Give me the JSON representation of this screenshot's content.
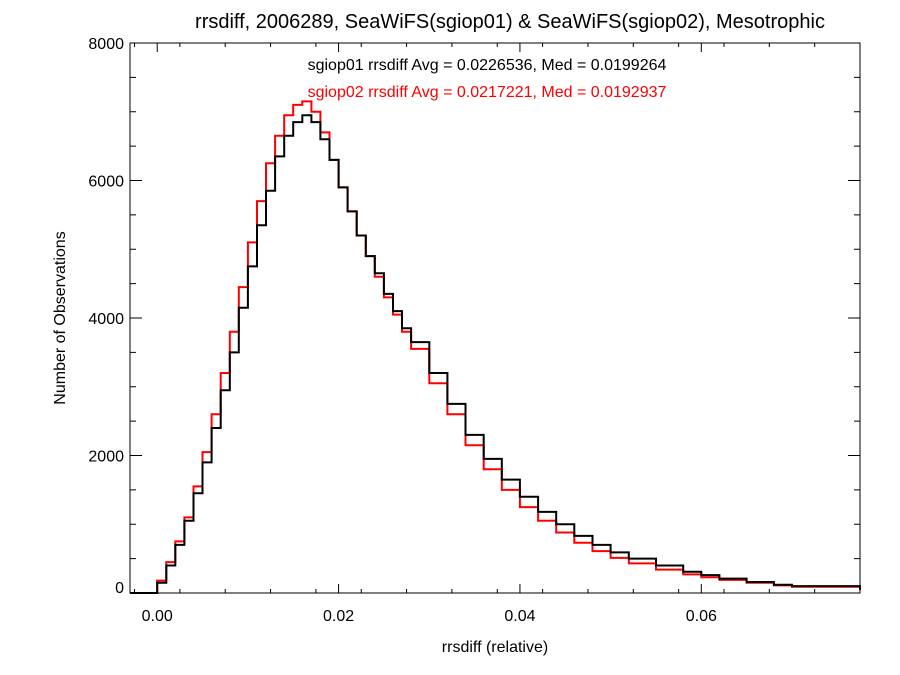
{
  "chart_data": {
    "type": "line",
    "title": "rrsdiff, 2006289, SeaWiFS(sgiop01) & SeaWiFS(sgiop02), Mesotrophic",
    "xlabel": "rrsdiff (relative)",
    "ylabel": "Number of Observations",
    "xlim": [
      -0.003,
      0.0775
    ],
    "ylim": [
      0,
      8000
    ],
    "x_ticks": [
      0.0,
      0.02,
      0.04,
      0.06
    ],
    "x_tick_labels": [
      "0.00",
      "0.02",
      "0.04",
      "0.06"
    ],
    "y_ticks": [
      0,
      2000,
      4000,
      6000,
      8000
    ],
    "y_tick_labels": [
      "0",
      "2000",
      "4000",
      "6000",
      "8000"
    ],
    "grid": false,
    "legend_position": "top-center",
    "series": [
      {
        "name": "sgiop01",
        "legend": "sgiop01 rrsdiff Avg = 0.0226536, Med = 0.0199264",
        "color": "#000000",
        "x": [
          -0.003,
          -0.0005,
          0.0,
          0.001,
          0.002,
          0.003,
          0.004,
          0.005,
          0.006,
          0.007,
          0.008,
          0.009,
          0.01,
          0.011,
          0.012,
          0.013,
          0.014,
          0.015,
          0.016,
          0.017,
          0.018,
          0.019,
          0.02,
          0.021,
          0.022,
          0.023,
          0.024,
          0.025,
          0.026,
          0.027,
          0.028,
          0.03,
          0.032,
          0.034,
          0.036,
          0.038,
          0.04,
          0.042,
          0.044,
          0.046,
          0.048,
          0.05,
          0.052,
          0.055,
          0.058,
          0.06,
          0.062,
          0.065,
          0.068,
          0.07,
          0.0775
        ],
        "y": [
          0,
          0,
          150,
          400,
          700,
          1050,
          1450,
          1900,
          2400,
          2950,
          3500,
          4150,
          4750,
          5350,
          5850,
          6350,
          6650,
          6850,
          6950,
          6850,
          6600,
          6300,
          5900,
          5550,
          5200,
          4900,
          4650,
          4350,
          4100,
          3850,
          3650,
          3200,
          2750,
          2300,
          1950,
          1650,
          1400,
          1180,
          1000,
          830,
          700,
          590,
          500,
          400,
          310,
          260,
          210,
          160,
          120,
          100,
          50
        ]
      },
      {
        "name": "sgiop02",
        "legend": "sgiop02 rrsdiff Avg = 0.0217221, Med = 0.0192937",
        "color": "#ff0000",
        "x": [
          -0.003,
          -0.0005,
          0.0,
          0.001,
          0.002,
          0.003,
          0.004,
          0.005,
          0.006,
          0.007,
          0.008,
          0.009,
          0.01,
          0.011,
          0.012,
          0.013,
          0.014,
          0.015,
          0.016,
          0.017,
          0.018,
          0.019,
          0.02,
          0.021,
          0.022,
          0.023,
          0.024,
          0.025,
          0.026,
          0.027,
          0.028,
          0.03,
          0.032,
          0.034,
          0.036,
          0.038,
          0.04,
          0.042,
          0.044,
          0.046,
          0.048,
          0.05,
          0.052,
          0.055,
          0.058,
          0.06,
          0.062,
          0.065,
          0.068,
          0.07,
          0.0775
        ],
        "y": [
          0,
          0,
          180,
          450,
          750,
          1100,
          1550,
          2050,
          2600,
          3200,
          3800,
          4450,
          5100,
          5700,
          6250,
          6650,
          6950,
          7100,
          7150,
          7000,
          6700,
          6300,
          5900,
          5550,
          5200,
          4900,
          4600,
          4300,
          4050,
          3800,
          3550,
          3050,
          2600,
          2150,
          1800,
          1500,
          1250,
          1050,
          880,
          730,
          610,
          510,
          430,
          340,
          270,
          230,
          190,
          150,
          110,
          90,
          40
        ]
      }
    ]
  }
}
